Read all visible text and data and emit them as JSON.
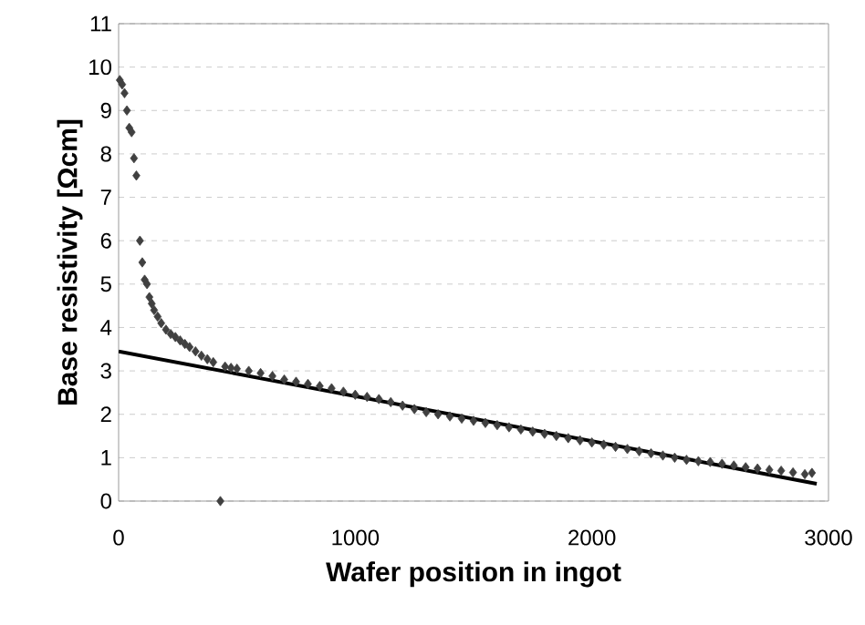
{
  "chart_data": {
    "type": "scatter",
    "xlabel": "Wafer position in ingot",
    "ylabel": "Base resistivity [Ωcm]",
    "xlim": [
      0,
      3000
    ],
    "ylim": [
      0,
      11
    ],
    "xticks": [
      0,
      1000,
      2000,
      3000
    ],
    "yticks": [
      0,
      1,
      2,
      3,
      4,
      5,
      6,
      7,
      8,
      9,
      10,
      11
    ],
    "grid": "y",
    "marker": "diamond",
    "series": [
      {
        "color": "#404040",
        "x": [
          5,
          15,
          25,
          35,
          45,
          55,
          65,
          75,
          90,
          100,
          110,
          120,
          130,
          140,
          150,
          165,
          180,
          200,
          220,
          240,
          260,
          280,
          300,
          325,
          350,
          375,
          400,
          430,
          450,
          475,
          500,
          550,
          600,
          650,
          700,
          750,
          800,
          850,
          900,
          950,
          1000,
          1050,
          1100,
          1150,
          1200,
          1250,
          1300,
          1350,
          1400,
          1450,
          1500,
          1550,
          1600,
          1650,
          1700,
          1750,
          1800,
          1850,
          1900,
          1950,
          2000,
          2050,
          2100,
          2150,
          2200,
          2250,
          2300,
          2350,
          2400,
          2450,
          2500,
          2550,
          2600,
          2650,
          2700,
          2750,
          2800,
          2850,
          2900,
          2930
        ],
        "values": [
          9.7,
          9.6,
          9.4,
          9.0,
          8.6,
          8.5,
          7.9,
          7.5,
          6.0,
          5.5,
          5.1,
          5.0,
          4.7,
          4.55,
          4.4,
          4.25,
          4.1,
          3.95,
          3.85,
          3.78,
          3.7,
          3.62,
          3.55,
          3.45,
          3.35,
          3.27,
          3.2,
          0,
          3.1,
          3.07,
          3.05,
          3.0,
          2.95,
          2.88,
          2.8,
          2.75,
          2.7,
          2.65,
          2.6,
          2.52,
          2.45,
          2.4,
          2.35,
          2.28,
          2.2,
          2.12,
          2.05,
          2.0,
          1.95,
          1.9,
          1.85,
          1.8,
          1.75,
          1.7,
          1.65,
          1.6,
          1.55,
          1.5,
          1.45,
          1.4,
          1.35,
          1.3,
          1.25,
          1.2,
          1.15,
          1.1,
          1.05,
          1.0,
          0.95,
          0.92,
          0.9,
          0.86,
          0.82,
          0.78,
          0.75,
          0.72,
          0.7,
          0.66,
          0.62,
          0.65
        ]
      },
      {
        "type": "line",
        "color": "#000000",
        "marker": "none",
        "x": [
          0,
          2950
        ],
        "values": [
          3.45,
          0.4
        ]
      }
    ]
  }
}
